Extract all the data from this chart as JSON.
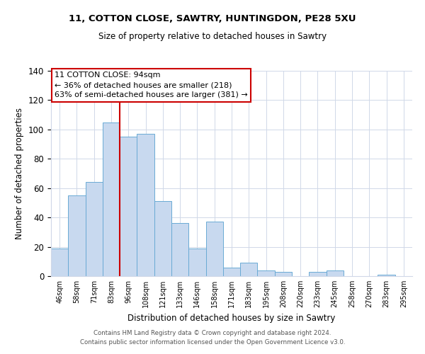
{
  "title1": "11, COTTON CLOSE, SAWTRY, HUNTINGDON, PE28 5XU",
  "title2": "Size of property relative to detached houses in Sawtry",
  "xlabel": "Distribution of detached houses by size in Sawtry",
  "ylabel": "Number of detached properties",
  "categories": [
    "46sqm",
    "58sqm",
    "71sqm",
    "83sqm",
    "96sqm",
    "108sqm",
    "121sqm",
    "133sqm",
    "146sqm",
    "158sqm",
    "171sqm",
    "183sqm",
    "195sqm",
    "208sqm",
    "220sqm",
    "233sqm",
    "245sqm",
    "258sqm",
    "270sqm",
    "283sqm",
    "295sqm"
  ],
  "values": [
    19,
    55,
    64,
    105,
    95,
    97,
    51,
    36,
    19,
    37,
    6,
    9,
    4,
    3,
    0,
    3,
    4,
    0,
    0,
    1,
    0
  ],
  "bar_color": "#c8d9ef",
  "bar_edge_color": "#6aaad4",
  "vline_color": "#cc0000",
  "vline_x": 3.5,
  "annotation_title": "11 COTTON CLOSE: 94sqm",
  "annotation_line1": "← 36% of detached houses are smaller (218)",
  "annotation_line2": "63% of semi-detached houses are larger (381) →",
  "box_color": "#ffffff",
  "box_edge_color": "#cc0000",
  "ylim": [
    0,
    140
  ],
  "yticks": [
    0,
    20,
    40,
    60,
    80,
    100,
    120,
    140
  ],
  "footer1": "Contains HM Land Registry data © Crown copyright and database right 2024.",
  "footer2": "Contains public sector information licensed under the Open Government Licence v3.0.",
  "bg_color": "#ffffff",
  "grid_color": "#d0d8e8"
}
